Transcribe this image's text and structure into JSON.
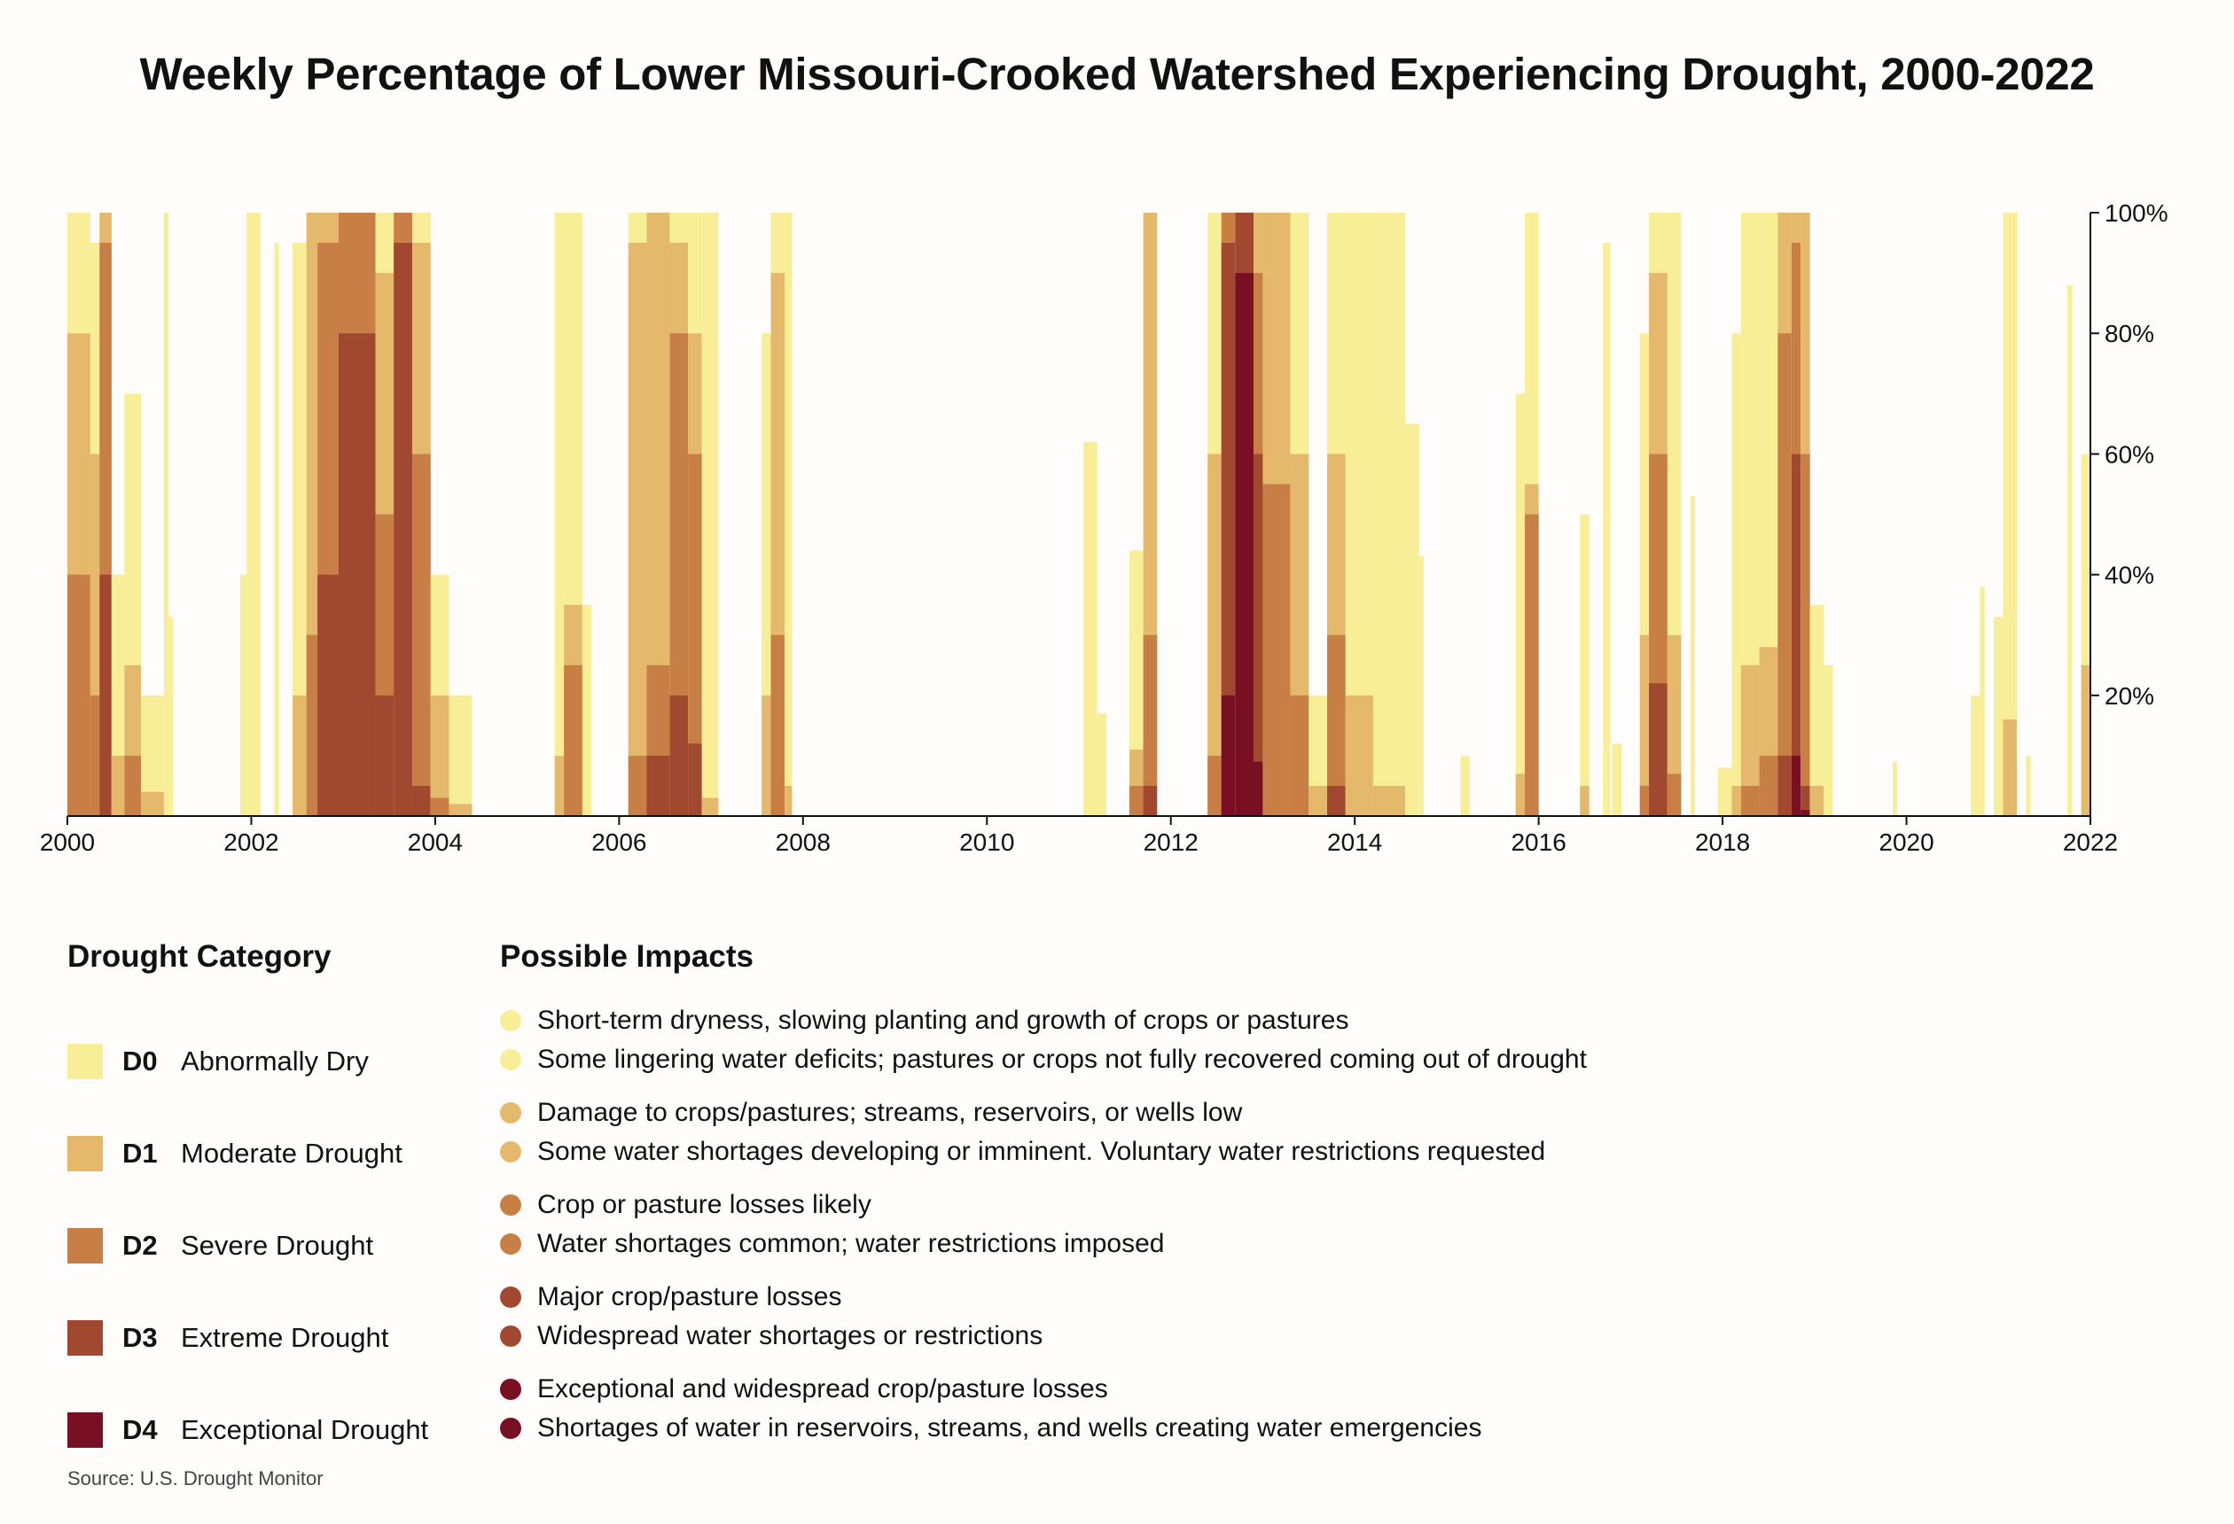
{
  "title": "Weekly Percentage of Lower Missouri-Crooked Watershed Experiencing Drought, 2000-2022",
  "chart_data": {
    "type": "area",
    "title": "Weekly Percentage of Lower Missouri-Crooked Watershed Experiencing Drought, 2000-2022",
    "xlabel": "",
    "ylabel": "",
    "xlim": [
      2000,
      2022
    ],
    "ylim": [
      0,
      100
    ],
    "x_ticks": [
      "2000",
      "2002",
      "2004",
      "2006",
      "2008",
      "2010",
      "2012",
      "2014",
      "2016",
      "2018",
      "2020",
      "2022"
    ],
    "y_ticks": [
      "20%",
      "40%",
      "60%",
      "80%",
      "100%"
    ],
    "y_axis_side": "right",
    "note": "Approximate episodes read from weekly bars; each episode gives percent of watershed at or above each category.",
    "series_order": [
      "D0",
      "D1",
      "D2",
      "D3",
      "D4"
    ],
    "episodes": [
      {
        "start": 2000.0,
        "end": 2000.25,
        "D0": 100,
        "D1": 80,
        "D2": 40,
        "D3": 0,
        "D4": 0
      },
      {
        "start": 2000.25,
        "end": 2000.35,
        "D0": 95,
        "D1": 60,
        "D2": 20,
        "D3": 0,
        "D4": 0
      },
      {
        "start": 2000.35,
        "end": 2000.48,
        "D0": 100,
        "D1": 100,
        "D2": 95,
        "D3": 40,
        "D4": 0
      },
      {
        "start": 2000.48,
        "end": 2000.62,
        "D0": 40,
        "D1": 10,
        "D2": 0,
        "D3": 0,
        "D4": 0
      },
      {
        "start": 2000.62,
        "end": 2000.8,
        "D0": 70,
        "D1": 25,
        "D2": 10,
        "D3": 0,
        "D4": 0
      },
      {
        "start": 2000.8,
        "end": 2001.05,
        "D0": 20,
        "D1": 4,
        "D2": 0,
        "D3": 0,
        "D4": 0
      },
      {
        "start": 2001.05,
        "end": 2001.1,
        "D0": 100,
        "D1": 0,
        "D2": 0,
        "D3": 0,
        "D4": 0
      },
      {
        "start": 2001.1,
        "end": 2001.15,
        "D0": 33,
        "D1": 0,
        "D2": 0,
        "D3": 0,
        "D4": 0
      },
      {
        "start": 2001.88,
        "end": 2001.95,
        "D0": 40,
        "D1": 0,
        "D2": 0,
        "D3": 0,
        "D4": 0
      },
      {
        "start": 2001.95,
        "end": 2002.1,
        "D0": 100,
        "D1": 0,
        "D2": 0,
        "D3": 0,
        "D4": 0
      },
      {
        "start": 2002.25,
        "end": 2002.3,
        "D0": 95,
        "D1": 0,
        "D2": 0,
        "D3": 0,
        "D4": 0
      },
      {
        "start": 2002.45,
        "end": 2002.6,
        "D0": 95,
        "D1": 20,
        "D2": 0,
        "D3": 0,
        "D4": 0
      },
      {
        "start": 2002.6,
        "end": 2002.72,
        "D0": 100,
        "D1": 100,
        "D2": 30,
        "D3": 0,
        "D4": 0
      },
      {
        "start": 2002.72,
        "end": 2002.95,
        "D0": 100,
        "D1": 100,
        "D2": 95,
        "D3": 40,
        "D4": 0
      },
      {
        "start": 2002.95,
        "end": 2003.35,
        "D0": 100,
        "D1": 100,
        "D2": 100,
        "D3": 80,
        "D4": 0
      },
      {
        "start": 2003.35,
        "end": 2003.55,
        "D0": 100,
        "D1": 90,
        "D2": 50,
        "D3": 20,
        "D4": 0
      },
      {
        "start": 2003.55,
        "end": 2003.75,
        "D0": 100,
        "D1": 100,
        "D2": 100,
        "D3": 95,
        "D4": 0
      },
      {
        "start": 2003.75,
        "end": 2003.95,
        "D0": 100,
        "D1": 95,
        "D2": 60,
        "D3": 5,
        "D4": 0
      },
      {
        "start": 2003.95,
        "end": 2004.15,
        "D0": 40,
        "D1": 20,
        "D2": 3,
        "D3": 0,
        "D4": 0
      },
      {
        "start": 2004.15,
        "end": 2004.4,
        "D0": 20,
        "D1": 2,
        "D2": 0,
        "D3": 0,
        "D4": 0
      },
      {
        "start": 2005.3,
        "end": 2005.4,
        "D0": 100,
        "D1": 10,
        "D2": 0,
        "D3": 0,
        "D4": 0
      },
      {
        "start": 2005.4,
        "end": 2005.6,
        "D0": 100,
        "D1": 35,
        "D2": 25,
        "D3": 0,
        "D4": 0
      },
      {
        "start": 2005.6,
        "end": 2005.7,
        "D0": 35,
        "D1": 0,
        "D2": 0,
        "D3": 0,
        "D4": 0
      },
      {
        "start": 2006.1,
        "end": 2006.3,
        "D0": 100,
        "D1": 95,
        "D2": 10,
        "D3": 0,
        "D4": 0
      },
      {
        "start": 2006.3,
        "end": 2006.55,
        "D0": 100,
        "D1": 100,
        "D2": 25,
        "D3": 10,
        "D4": 0
      },
      {
        "start": 2006.55,
        "end": 2006.75,
        "D0": 100,
        "D1": 95,
        "D2": 80,
        "D3": 20,
        "D4": 0
      },
      {
        "start": 2006.75,
        "end": 2006.9,
        "D0": 100,
        "D1": 80,
        "D2": 60,
        "D3": 12,
        "D4": 0
      },
      {
        "start": 2006.9,
        "end": 2007.08,
        "D0": 100,
        "D1": 3,
        "D2": 0,
        "D3": 0,
        "D4": 0
      },
      {
        "start": 2007.55,
        "end": 2007.65,
        "D0": 80,
        "D1": 20,
        "D2": 0,
        "D3": 0,
        "D4": 0
      },
      {
        "start": 2007.65,
        "end": 2007.8,
        "D0": 100,
        "D1": 90,
        "D2": 30,
        "D3": 0,
        "D4": 0
      },
      {
        "start": 2007.8,
        "end": 2007.88,
        "D0": 100,
        "D1": 5,
        "D2": 0,
        "D3": 0,
        "D4": 0
      },
      {
        "start": 2011.05,
        "end": 2011.2,
        "D0": 62,
        "D1": 0,
        "D2": 0,
        "D3": 0,
        "D4": 0
      },
      {
        "start": 2011.2,
        "end": 2011.3,
        "D0": 17,
        "D1": 0,
        "D2": 0,
        "D3": 0,
        "D4": 0
      },
      {
        "start": 2011.55,
        "end": 2011.7,
        "D0": 44,
        "D1": 11,
        "D2": 5,
        "D3": 0,
        "D4": 0
      },
      {
        "start": 2011.7,
        "end": 2011.85,
        "D0": 100,
        "D1": 100,
        "D2": 30,
        "D3": 5,
        "D4": 0
      },
      {
        "start": 2012.4,
        "end": 2012.55,
        "D0": 100,
        "D1": 60,
        "D2": 10,
        "D3": 0,
        "D4": 0
      },
      {
        "start": 2012.55,
        "end": 2012.7,
        "D0": 100,
        "D1": 100,
        "D2": 100,
        "D3": 95,
        "D4": 20
      },
      {
        "start": 2012.7,
        "end": 2012.9,
        "D0": 100,
        "D1": 100,
        "D2": 100,
        "D3": 100,
        "D4": 90
      },
      {
        "start": 2012.9,
        "end": 2013.0,
        "D0": 100,
        "D1": 100,
        "D2": 90,
        "D3": 60,
        "D4": 9
      },
      {
        "start": 2013.0,
        "end": 2013.3,
        "D0": 100,
        "D1": 100,
        "D2": 55,
        "D3": 0,
        "D4": 0
      },
      {
        "start": 2013.3,
        "end": 2013.5,
        "D0": 100,
        "D1": 60,
        "D2": 20,
        "D3": 0,
        "D4": 0
      },
      {
        "start": 2013.5,
        "end": 2013.7,
        "D0": 20,
        "D1": 5,
        "D2": 0,
        "D3": 0,
        "D4": 0
      },
      {
        "start": 2013.7,
        "end": 2013.9,
        "D0": 100,
        "D1": 60,
        "D2": 30,
        "D3": 5,
        "D4": 0
      },
      {
        "start": 2013.9,
        "end": 2014.2,
        "D0": 100,
        "D1": 20,
        "D2": 0,
        "D3": 0,
        "D4": 0
      },
      {
        "start": 2014.2,
        "end": 2014.55,
        "D0": 100,
        "D1": 5,
        "D2": 0,
        "D3": 0,
        "D4": 0
      },
      {
        "start": 2014.55,
        "end": 2014.7,
        "D0": 65,
        "D1": 0,
        "D2": 0,
        "D3": 0,
        "D4": 0
      },
      {
        "start": 2014.7,
        "end": 2014.75,
        "D0": 43,
        "D1": 0,
        "D2": 0,
        "D3": 0,
        "D4": 0
      },
      {
        "start": 2015.15,
        "end": 2015.25,
        "D0": 10,
        "D1": 0,
        "D2": 0,
        "D3": 0,
        "D4": 0
      },
      {
        "start": 2015.75,
        "end": 2015.85,
        "D0": 70,
        "D1": 7,
        "D2": 0,
        "D3": 0,
        "D4": 0
      },
      {
        "start": 2015.85,
        "end": 2016.0,
        "D0": 100,
        "D1": 55,
        "D2": 50,
        "D3": 0,
        "D4": 0
      },
      {
        "start": 2016.45,
        "end": 2016.55,
        "D0": 50,
        "D1": 5,
        "D2": 0,
        "D3": 0,
        "D4": 0
      },
      {
        "start": 2016.7,
        "end": 2016.78,
        "D0": 95,
        "D1": 0,
        "D2": 0,
        "D3": 0,
        "D4": 0
      },
      {
        "start": 2016.8,
        "end": 2016.9,
        "D0": 12,
        "D1": 0,
        "D2": 0,
        "D3": 0,
        "D4": 0
      },
      {
        "start": 2017.1,
        "end": 2017.2,
        "D0": 80,
        "D1": 30,
        "D2": 5,
        "D3": 0,
        "D4": 0
      },
      {
        "start": 2017.2,
        "end": 2017.4,
        "D0": 100,
        "D1": 90,
        "D2": 60,
        "D3": 22,
        "D4": 0
      },
      {
        "start": 2017.4,
        "end": 2017.55,
        "D0": 100,
        "D1": 30,
        "D2": 7,
        "D3": 0,
        "D4": 0
      },
      {
        "start": 2017.65,
        "end": 2017.7,
        "D0": 53,
        "D1": 0,
        "D2": 0,
        "D3": 0,
        "D4": 0
      },
      {
        "start": 2017.95,
        "end": 2018.1,
        "D0": 8,
        "D1": 0,
        "D2": 0,
        "D3": 0,
        "D4": 0
      },
      {
        "start": 2018.1,
        "end": 2018.2,
        "D0": 80,
        "D1": 5,
        "D2": 0,
        "D3": 0,
        "D4": 0
      },
      {
        "start": 2018.2,
        "end": 2018.4,
        "D0": 100,
        "D1": 25,
        "D2": 5,
        "D3": 0,
        "D4": 0
      },
      {
        "start": 2018.4,
        "end": 2018.6,
        "D0": 100,
        "D1": 28,
        "D2": 10,
        "D3": 0,
        "D4": 0
      },
      {
        "start": 2018.6,
        "end": 2018.75,
        "D0": 100,
        "D1": 100,
        "D2": 80,
        "D3": 10,
        "D4": 0
      },
      {
        "start": 2018.75,
        "end": 2018.85,
        "D0": 100,
        "D1": 100,
        "D2": 95,
        "D3": 60,
        "D4": 10
      },
      {
        "start": 2018.85,
        "end": 2018.95,
        "D0": 100,
        "D1": 100,
        "D2": 60,
        "D3": 5,
        "D4": 1
      },
      {
        "start": 2018.95,
        "end": 2019.1,
        "D0": 35,
        "D1": 5,
        "D2": 0,
        "D3": 0,
        "D4": 0
      },
      {
        "start": 2019.1,
        "end": 2019.2,
        "D0": 25,
        "D1": 0,
        "D2": 0,
        "D3": 0,
        "D4": 0
      },
      {
        "start": 2019.85,
        "end": 2019.9,
        "D0": 9,
        "D1": 0,
        "D2": 0,
        "D3": 0,
        "D4": 0
      },
      {
        "start": 2020.7,
        "end": 2020.8,
        "D0": 20,
        "D1": 0,
        "D2": 0,
        "D3": 0,
        "D4": 0
      },
      {
        "start": 2020.8,
        "end": 2020.85,
        "D0": 38,
        "D1": 0,
        "D2": 0,
        "D3": 0,
        "D4": 0
      },
      {
        "start": 2020.95,
        "end": 2021.05,
        "D0": 33,
        "D1": 0,
        "D2": 0,
        "D3": 0,
        "D4": 0
      },
      {
        "start": 2021.05,
        "end": 2021.2,
        "D0": 100,
        "D1": 16,
        "D2": 0,
        "D3": 0,
        "D4": 0
      },
      {
        "start": 2021.3,
        "end": 2021.35,
        "D0": 10,
        "D1": 0,
        "D2": 0,
        "D3": 0,
        "D4": 0
      },
      {
        "start": 2021.75,
        "end": 2021.8,
        "D0": 88,
        "D1": 0,
        "D2": 0,
        "D3": 0,
        "D4": 0
      },
      {
        "start": 2021.9,
        "end": 2022.0,
        "D0": 60,
        "D1": 25,
        "D2": 0,
        "D3": 0,
        "D4": 0
      }
    ]
  },
  "colors": {
    "D0": "#f9ee98",
    "D1": "#e4b96c",
    "D2": "#c87f45",
    "D3": "#a04830",
    "D4": "#780f23",
    "axis": "#111111"
  },
  "legend": {
    "heading": "Drought Category",
    "items": [
      {
        "code": "D0",
        "name": "Abnormally Dry",
        "color": "#f9ee98"
      },
      {
        "code": "D1",
        "name": "Moderate Drought",
        "color": "#e4b96c"
      },
      {
        "code": "D2",
        "name": "Severe Drought",
        "color": "#c87f45"
      },
      {
        "code": "D3",
        "name": "Extreme Drought",
        "color": "#a04830"
      },
      {
        "code": "D4",
        "name": "Exceptional Drought",
        "color": "#780f23"
      }
    ]
  },
  "impacts": {
    "heading": "Possible Impacts",
    "groups": [
      {
        "color": "#f9ee98",
        "items": [
          "Short-term dryness, slowing planting and growth of crops or pastures",
          "Some lingering water deficits; pastures or crops not fully recovered coming out of drought"
        ]
      },
      {
        "color": "#e4b96c",
        "items": [
          "Damage to crops/pastures; streams, reservoirs, or wells low",
          "Some water shortages developing or imminent. Voluntary water restrictions requested"
        ]
      },
      {
        "color": "#c87f45",
        "items": [
          "Crop or pasture losses likely",
          "Water shortages common; water restrictions imposed"
        ]
      },
      {
        "color": "#a04830",
        "items": [
          "Major crop/pasture losses",
          "Widespread water shortages or restrictions"
        ]
      },
      {
        "color": "#780f23",
        "items": [
          "Exceptional and widespread crop/pasture losses",
          "Shortages of water in reservoirs, streams, and wells creating water emergencies"
        ]
      }
    ]
  },
  "source": "Source: U.S. Drought Monitor"
}
